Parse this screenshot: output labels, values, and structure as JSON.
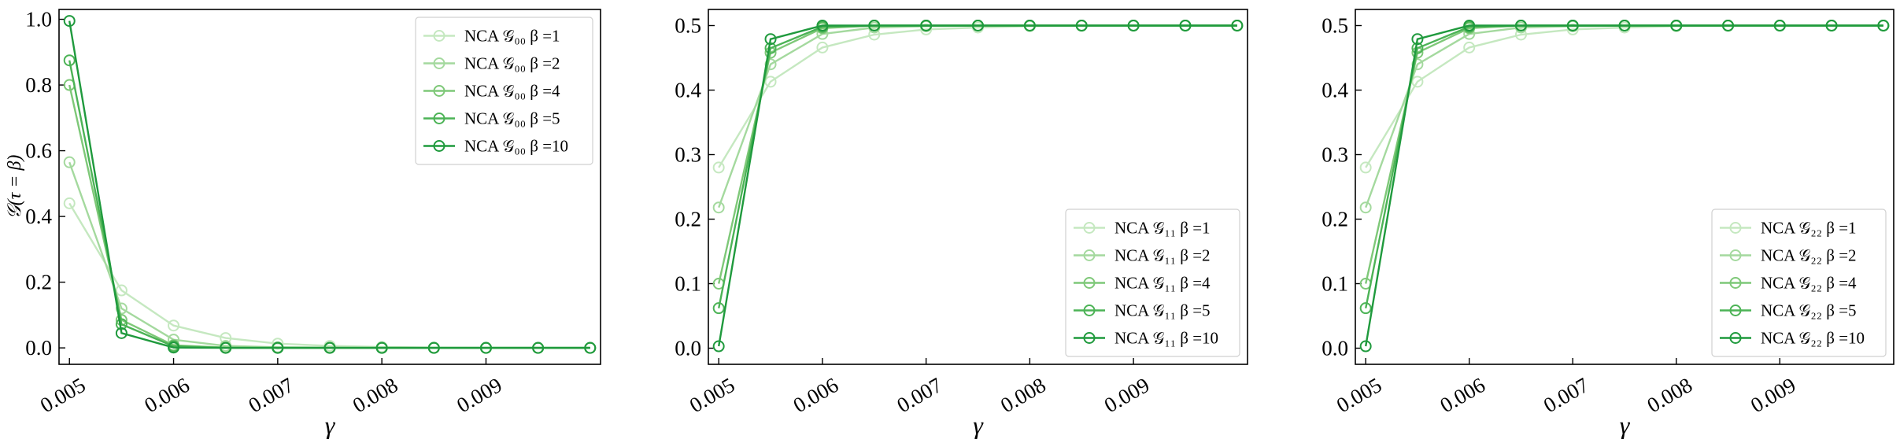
{
  "chart_data": [
    {
      "type": "line",
      "title": "",
      "xlabel": "γ",
      "ylabel": "𝒢(τ = β)",
      "xlim": [
        0.0049,
        0.0101
      ],
      "ylim": [
        -0.05,
        1.03
      ],
      "x_ticks": [
        0.005,
        0.006,
        0.007,
        0.008,
        0.009
      ],
      "x_tick_labels": [
        "0.005",
        "0.006",
        "0.007",
        "0.008",
        "0.009"
      ],
      "y_ticks": [
        0.0,
        0.2,
        0.4,
        0.6,
        0.8,
        1.0
      ],
      "y_tick_labels": [
        "0.0",
        "0.2",
        "0.4",
        "0.6",
        "0.8",
        "1.0"
      ],
      "legend_position": "top-right",
      "x": [
        0.005,
        0.0055,
        0.006,
        0.0065,
        0.007,
        0.0075,
        0.008,
        0.0085,
        0.009,
        0.0095,
        0.01
      ],
      "series": [
        {
          "name": "NCA 𝒢₀₀ β =1",
          "values": [
            0.44,
            0.175,
            0.068,
            0.03,
            0.013,
            0.006,
            0.003,
            0.001,
            0.0005,
            0.0002,
            0.0001
          ]
        },
        {
          "name": "NCA 𝒢₀₀ β =2",
          "values": [
            0.565,
            0.12,
            0.025,
            0.006,
            0.002,
            0.001,
            0.0,
            0.0,
            0.0,
            0.0,
            0.0
          ]
        },
        {
          "name": "NCA 𝒢₀₀ β =4",
          "values": [
            0.8,
            0.085,
            0.008,
            0.001,
            0.0,
            0.0,
            0.0,
            0.0,
            0.0,
            0.0,
            0.0
          ]
        },
        {
          "name": "NCA 𝒢₀₀ β =5",
          "values": [
            0.875,
            0.072,
            0.005,
            0.0,
            0.0,
            0.0,
            0.0,
            0.0,
            0.0,
            0.0,
            0.0
          ]
        },
        {
          "name": "NCA 𝒢₀₀ β =10",
          "values": [
            0.995,
            0.045,
            0.001,
            0.0,
            0.0,
            0.0,
            0.0,
            0.0,
            0.0,
            0.0,
            0.0
          ]
        }
      ]
    },
    {
      "type": "line",
      "title": "",
      "xlabel": "γ",
      "ylabel": "",
      "xlim": [
        0.0049,
        0.0101
      ],
      "ylim": [
        -0.025,
        0.525
      ],
      "x_ticks": [
        0.005,
        0.006,
        0.007,
        0.008,
        0.009
      ],
      "x_tick_labels": [
        "0.005",
        "0.006",
        "0.007",
        "0.008",
        "0.009"
      ],
      "y_ticks": [
        0.0,
        0.1,
        0.2,
        0.3,
        0.4,
        0.5
      ],
      "y_tick_labels": [
        "0.0",
        "0.1",
        "0.2",
        "0.3",
        "0.4",
        "0.5"
      ],
      "legend_position": "bottom-right",
      "x": [
        0.005,
        0.0055,
        0.006,
        0.0065,
        0.007,
        0.0075,
        0.008,
        0.0085,
        0.009,
        0.0095,
        0.01
      ],
      "series": [
        {
          "name": "NCA 𝒢₁₁ β =1",
          "values": [
            0.28,
            0.413,
            0.466,
            0.486,
            0.494,
            0.497,
            0.499,
            0.4995,
            0.4998,
            0.4999,
            0.5
          ]
        },
        {
          "name": "NCA 𝒢₁₁ β =2",
          "values": [
            0.218,
            0.44,
            0.487,
            0.497,
            0.499,
            0.5,
            0.5,
            0.5,
            0.5,
            0.5,
            0.5
          ]
        },
        {
          "name": "NCA 𝒢₁₁ β =4",
          "values": [
            0.1,
            0.458,
            0.496,
            0.5,
            0.5,
            0.5,
            0.5,
            0.5,
            0.5,
            0.5,
            0.5
          ]
        },
        {
          "name": "NCA 𝒢₁₁ β =5",
          "values": [
            0.062,
            0.465,
            0.498,
            0.5,
            0.5,
            0.5,
            0.5,
            0.5,
            0.5,
            0.5,
            0.5
          ]
        },
        {
          "name": "NCA 𝒢₁₁ β =10",
          "values": [
            0.003,
            0.479,
            0.5,
            0.5,
            0.5,
            0.5,
            0.5,
            0.5,
            0.5,
            0.5,
            0.5
          ]
        }
      ]
    },
    {
      "type": "line",
      "title": "",
      "xlabel": "γ",
      "ylabel": "",
      "xlim": [
        0.0049,
        0.0101
      ],
      "ylim": [
        -0.025,
        0.525
      ],
      "x_ticks": [
        0.005,
        0.006,
        0.007,
        0.008,
        0.009
      ],
      "x_tick_labels": [
        "0.005",
        "0.006",
        "0.007",
        "0.008",
        "0.009"
      ],
      "y_ticks": [
        0.0,
        0.1,
        0.2,
        0.3,
        0.4,
        0.5
      ],
      "y_tick_labels": [
        "0.0",
        "0.1",
        "0.2",
        "0.3",
        "0.4",
        "0.5"
      ],
      "legend_position": "bottom-right",
      "x": [
        0.005,
        0.0055,
        0.006,
        0.0065,
        0.007,
        0.0075,
        0.008,
        0.0085,
        0.009,
        0.0095,
        0.01
      ],
      "series": [
        {
          "name": "NCA 𝒢₂₂ β =1",
          "values": [
            0.28,
            0.413,
            0.466,
            0.486,
            0.494,
            0.497,
            0.499,
            0.4995,
            0.4998,
            0.4999,
            0.5
          ]
        },
        {
          "name": "NCA 𝒢₂₂ β =2",
          "values": [
            0.218,
            0.44,
            0.487,
            0.497,
            0.499,
            0.5,
            0.5,
            0.5,
            0.5,
            0.5,
            0.5
          ]
        },
        {
          "name": "NCA 𝒢₂₂ β =4",
          "values": [
            0.1,
            0.458,
            0.496,
            0.5,
            0.5,
            0.5,
            0.5,
            0.5,
            0.5,
            0.5,
            0.5
          ]
        },
        {
          "name": "NCA 𝒢₂₂ β =5",
          "values": [
            0.062,
            0.465,
            0.498,
            0.5,
            0.5,
            0.5,
            0.5,
            0.5,
            0.5,
            0.5,
            0.5
          ]
        },
        {
          "name": "NCA 𝒢₂₂ β =10",
          "values": [
            0.003,
            0.479,
            0.5,
            0.5,
            0.5,
            0.5,
            0.5,
            0.5,
            0.5,
            0.5,
            0.5
          ]
        }
      ]
    }
  ],
  "colors": {
    "series": [
      "#c5e8c0",
      "#a4d99e",
      "#7ec878",
      "#4cb356",
      "#1f9a3d"
    ],
    "axes": "#000000",
    "background": "#ffffff"
  },
  "marker": "open-circle"
}
